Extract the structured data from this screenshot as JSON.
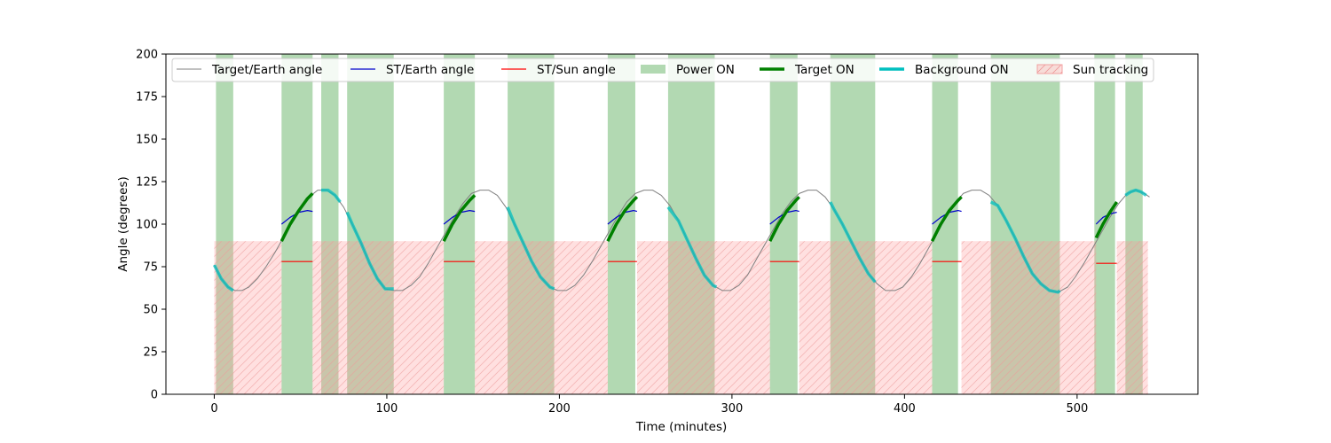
{
  "chart_data": {
    "type": "line",
    "title": "",
    "xlabel": "Time (minutes)",
    "ylabel": "Angle (degrees)",
    "xlim": [
      -28,
      570
    ],
    "ylim": [
      0,
      200
    ],
    "xticks": [
      0,
      100,
      200,
      300,
      400,
      500
    ],
    "yticks": [
      0,
      25,
      50,
      75,
      100,
      125,
      150,
      175,
      200
    ],
    "grid": false,
    "legend_position": "top",
    "orbit_period_minutes": 94.5,
    "series": [
      {
        "name": "Target/Earth angle",
        "kind": "line",
        "color": "#808080",
        "x": [
          0,
          4,
          8,
          12,
          16,
          20,
          25,
          30,
          35,
          40,
          45,
          50,
          55,
          60,
          65,
          70,
          75,
          80,
          85,
          90,
          94.5,
          99,
          104,
          109,
          114,
          119,
          124,
          129,
          134,
          139,
          144,
          149,
          154,
          159,
          164,
          169,
          174,
          179,
          184,
          189,
          194.5,
          199,
          204,
          209,
          214,
          219,
          224,
          229,
          234,
          239,
          244,
          249,
          254,
          259,
          264,
          269,
          274,
          279,
          284,
          289,
          294.5,
          299,
          304,
          309,
          314,
          319,
          324,
          329,
          334,
          339,
          344,
          349,
          354,
          359,
          364,
          369,
          374,
          379,
          384,
          389,
          394.5,
          399,
          404,
          409,
          414,
          419,
          424,
          429,
          434,
          439,
          444,
          449,
          454,
          459,
          464,
          469,
          474,
          479,
          484,
          489,
          494.5,
          499,
          504,
          509,
          514,
          519,
          524,
          529,
          534,
          539,
          542
        ],
        "y": [
          76,
          68,
          63,
          61,
          61,
          63,
          68,
          75,
          83,
          92,
          101,
          110,
          116,
          120,
          120,
          117,
          110,
          100,
          89,
          77,
          68,
          62,
          61,
          61,
          64,
          69,
          77,
          86,
          95,
          104,
          112,
          118,
          120,
          120,
          117,
          110,
          100,
          89,
          78,
          69,
          63,
          61,
          61,
          64,
          70,
          78,
          87,
          96,
          105,
          113,
          118,
          120,
          120,
          117,
          111,
          102,
          91,
          80,
          70,
          64,
          61,
          61,
          64,
          70,
          79,
          88,
          97,
          106,
          113,
          118,
          120,
          120,
          116,
          109,
          100,
          90,
          80,
          71,
          65,
          61,
          61,
          63,
          69,
          77,
          86,
          95,
          104,
          112,
          118,
          120,
          120,
          117,
          111,
          102,
          92,
          81,
          71,
          65,
          61,
          60,
          63,
          69,
          77,
          86,
          95,
          104,
          112,
          118,
          120,
          118,
          116
        ]
      },
      {
        "name": "ST/Earth angle",
        "kind": "segments",
        "color": "#0000cc",
        "segments": [
          {
            "x": [
              39,
              44,
              49,
              54,
              57
            ],
            "y": [
              100,
              104,
              107,
              108,
              107.5
            ]
          },
          {
            "x": [
              133,
              138,
              143,
              148,
              151
            ],
            "y": [
              100,
              104,
              107,
              108,
              107.5
            ]
          },
          {
            "x": [
              228,
              233,
              238,
              243,
              245
            ],
            "y": [
              100,
              104,
              107,
              108,
              107.5
            ]
          },
          {
            "x": [
              322,
              327,
              332,
              337,
              339
            ],
            "y": [
              100,
              104,
              107,
              108,
              107.5
            ]
          },
          {
            "x": [
              416,
              421,
              426,
              431,
              433
            ],
            "y": [
              100,
              104,
              107,
              108,
              107.5
            ]
          },
          {
            "x": [
              511,
              515,
              519,
              523
            ],
            "y": [
              100,
              104,
              106,
              107
            ]
          }
        ]
      },
      {
        "name": "ST/Sun angle",
        "kind": "segments",
        "color": "#ff0000",
        "segments": [
          {
            "x": [
              39,
              57
            ],
            "y": [
              78,
              78
            ]
          },
          {
            "x": [
              133,
              151
            ],
            "y": [
              78,
              78
            ]
          },
          {
            "x": [
              228,
              245
            ],
            "y": [
              78,
              78
            ]
          },
          {
            "x": [
              322,
              339
            ],
            "y": [
              78,
              78
            ]
          },
          {
            "x": [
              416,
              433
            ],
            "y": [
              78,
              78
            ]
          },
          {
            "x": [
              511,
              523
            ],
            "y": [
              77,
              77
            ]
          }
        ]
      },
      {
        "name": "Power ON",
        "kind": "span",
        "color": "#008000",
        "opacity": 0.3,
        "ranges": [
          [
            1,
            11
          ],
          [
            39,
            57
          ],
          [
            62,
            72
          ],
          [
            77,
            104
          ],
          [
            133,
            151
          ],
          [
            170,
            197
          ],
          [
            228,
            244
          ],
          [
            263,
            290
          ],
          [
            322,
            338
          ],
          [
            357,
            383
          ],
          [
            416,
            431
          ],
          [
            450,
            490
          ],
          [
            510,
            522
          ],
          [
            528,
            538
          ]
        ]
      },
      {
        "name": "Target ON",
        "kind": "segments",
        "color": "#008000",
        "segments": [
          {
            "x": [
              39,
              44,
              49,
              54,
              57
            ],
            "y": [
              90,
              100,
              108,
              115,
              118
            ]
          },
          {
            "x": [
              133,
              138,
              143,
              148,
              151
            ],
            "y": [
              90,
              100,
              108,
              114,
              117
            ]
          },
          {
            "x": [
              228,
              233,
              238,
              243,
              245
            ],
            "y": [
              90,
              100,
              108,
              114,
              116
            ]
          },
          {
            "x": [
              322,
              327,
              332,
              337,
              339
            ],
            "y": [
              90,
              100,
              108,
              114,
              116
            ]
          },
          {
            "x": [
              416,
              421,
              426,
              431,
              433
            ],
            "y": [
              90,
              100,
              108,
              114,
              116
            ]
          },
          {
            "x": [
              511,
              515,
              519,
              523
            ],
            "y": [
              92,
              100,
              107,
              113
            ]
          }
        ]
      },
      {
        "name": "Background ON",
        "kind": "segments",
        "color": "#00bfbf",
        "segments": [
          {
            "x": [
              0,
              4,
              8,
              11
            ],
            "y": [
              76,
              68,
              63,
              61
            ]
          },
          {
            "x": [
              62,
              66,
              70,
              73
            ],
            "y": [
              120,
              120,
              117,
              113
            ]
          },
          {
            "x": [
              77,
              80,
              85,
              90,
              94.5,
              99,
              104
            ],
            "y": [
              107,
              100,
              89,
              77,
              68,
              62,
              62
            ]
          },
          {
            "x": [
              170,
              174,
              179,
              184,
              189,
              194.5,
              197
            ],
            "y": [
              110,
              100,
              89,
              78,
              69,
              63,
              62
            ]
          },
          {
            "x": [
              263,
              269,
              274,
              279,
              284,
              289,
              291
            ],
            "y": [
              110,
              102,
              91,
              80,
              70,
              64,
              63
            ]
          },
          {
            "x": [
              357,
              359,
              364,
              369,
              374,
              379,
              383
            ],
            "y": [
              113,
              109,
              100,
              90,
              80,
              71,
              66
            ]
          },
          {
            "x": [
              450,
              454,
              459,
              464,
              469,
              474,
              479,
              484,
              489,
              490
            ],
            "y": [
              113,
              111,
              102,
              92,
              81,
              71,
              65,
              61,
              60,
              61
            ]
          },
          {
            "x": [
              528,
              531,
              534,
              537,
              540
            ],
            "y": [
              117,
              119,
              120,
              119,
              117
            ]
          }
        ]
      },
      {
        "name": "Sun tracking",
        "kind": "span",
        "color": "#ff9999",
        "opacity": 0.3,
        "hatch": true,
        "ylim": [
          0,
          90
        ],
        "ranges": [
          [
            0,
            39
          ],
          [
            57,
            133
          ],
          [
            151,
            228
          ],
          [
            245,
            322
          ],
          [
            339,
            416
          ],
          [
            433,
            511
          ],
          [
            523,
            541
          ]
        ]
      }
    ]
  }
}
